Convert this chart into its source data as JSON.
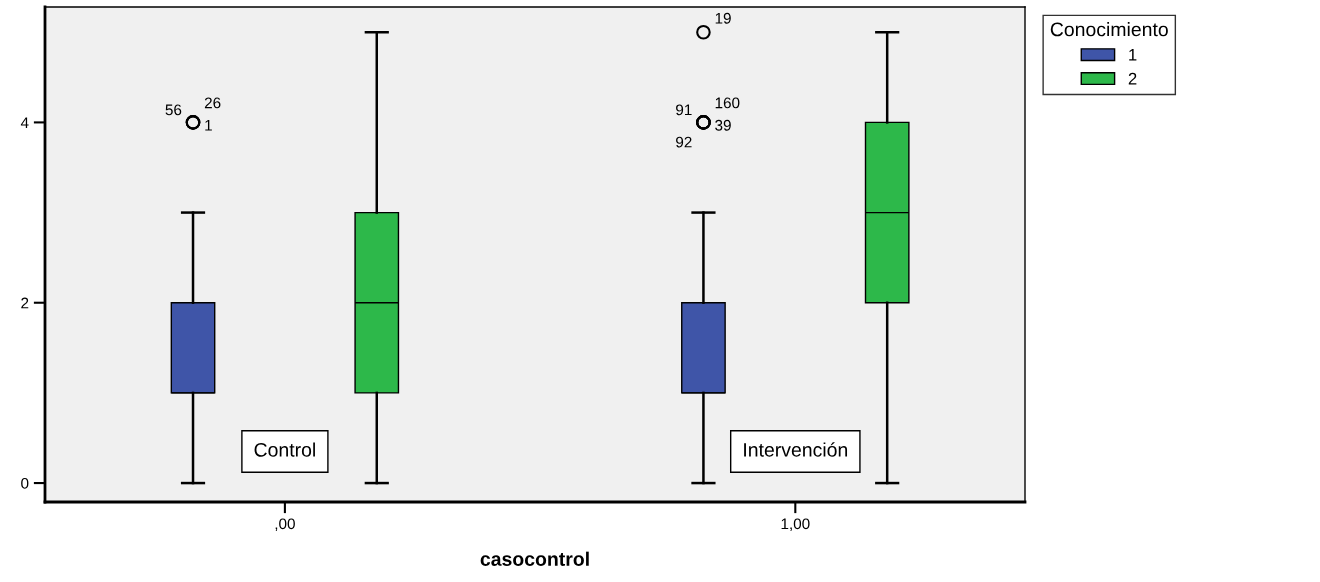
{
  "chart_data": {
    "type": "box",
    "xlabel": "casocontrol",
    "categories": [
      ",00",
      "1,00"
    ],
    "series": [
      {
        "name": "1",
        "color": "#3f55a8",
        "boxes": [
          {
            "low": 0,
            "q1": 1,
            "median": 1,
            "q3": 2,
            "high": 3,
            "outliers": [
              4,
              4,
              4
            ]
          },
          {
            "low": 0,
            "q1": 1,
            "median": 1,
            "q3": 2,
            "high": 3,
            "outliers": [
              4,
              4,
              4,
              4,
              5
            ]
          }
        ]
      },
      {
        "name": "2",
        "color": "#2db84a",
        "boxes": [
          {
            "low": 0,
            "q1": 1,
            "median": 2,
            "q3": 3,
            "high": 5
          },
          {
            "low": 0,
            "q1": 2,
            "median": 3,
            "q3": 4,
            "high": 5
          }
        ]
      }
    ],
    "ylim": [
      -0.21,
      5.28
    ],
    "yticks": [
      0,
      2,
      4
    ],
    "legend": "right",
    "legend_title": "Conocimiento",
    "grid": false,
    "annotations": [
      "Control",
      "Intervención",
      "56",
      "26",
      "1",
      "91",
      "160",
      "39",
      "92",
      "19"
    ]
  }
}
